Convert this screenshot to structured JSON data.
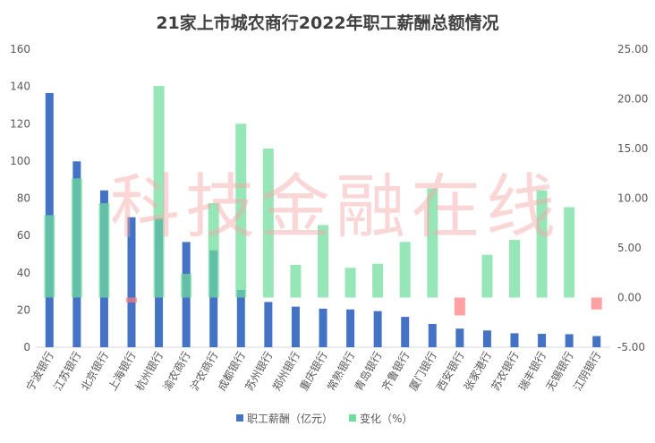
{
  "chart_data": {
    "type": "bar",
    "title": "21家上市城农商行2022年职工薪酬总额情况",
    "categories": [
      "宁波银行",
      "江苏银行",
      "北京银行",
      "上海银行",
      "杭州银行",
      "渝农商行",
      "沪农商行",
      "成都银行",
      "苏州银行",
      "郑州银行",
      "重庆银行",
      "常熟银行",
      "青岛银行",
      "齐鲁银行",
      "厦门银行",
      "西安银行",
      "张家港行",
      "苏农银行",
      "瑞丰银行",
      "无锡银行",
      "江阴银行"
    ],
    "series": [
      {
        "name": "职工薪酬（亿元）",
        "axis": "left",
        "color": "#4472c4",
        "values": [
          136.5,
          99.8,
          84.2,
          69.8,
          69.2,
          56.5,
          52.0,
          30.8,
          24.3,
          21.8,
          20.7,
          20.3,
          19.4,
          16.3,
          12.5,
          10.0,
          9.0,
          7.5,
          7.2,
          7.0,
          6.0
        ]
      },
      {
        "name": "变化（%）",
        "axis": "right",
        "color": "#6fdc9c",
        "values": [
          8.3,
          12.0,
          9.5,
          -0.5,
          21.3,
          2.4,
          9.5,
          17.5,
          15.0,
          3.3,
          7.3,
          3.0,
          3.4,
          5.6,
          11.0,
          -1.8,
          4.3,
          5.8,
          10.8,
          9.1,
          -1.2
        ]
      }
    ],
    "y_left": {
      "min": 0,
      "max": 160,
      "ticks": [
        "0",
        "20",
        "40",
        "60",
        "80",
        "100",
        "120",
        "140",
        "160"
      ]
    },
    "y_right": {
      "min": -5,
      "max": 25,
      "ticks": [
        "-5.00",
        "0.00",
        "5.00",
        "10.00",
        "15.00",
        "20.00",
        "25.00"
      ]
    },
    "legend_position": "bottom",
    "negative_change_color": "#ff7c80",
    "grid": false
  },
  "watermark": "科技金融在线"
}
